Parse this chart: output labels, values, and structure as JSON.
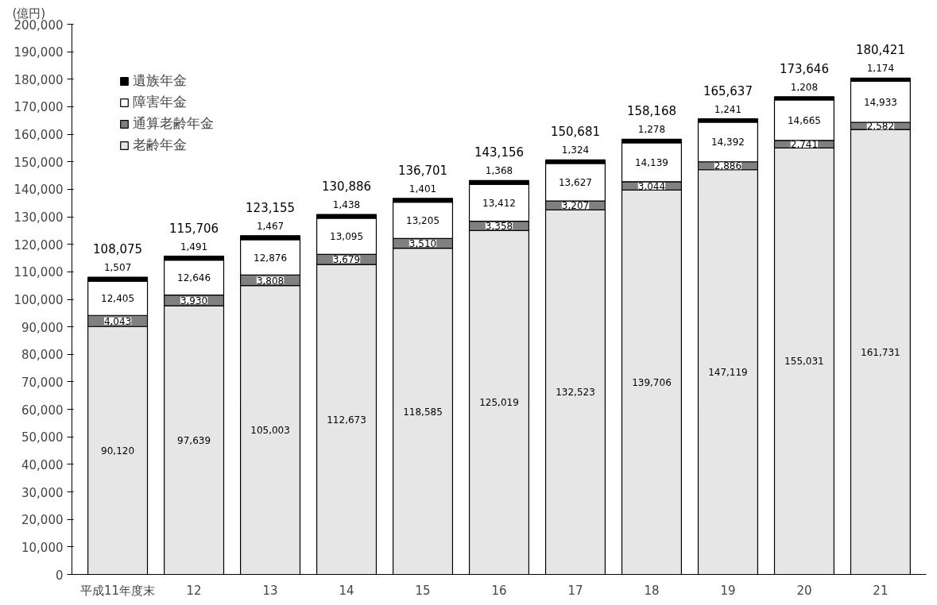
{
  "chart_data": {
    "type": "bar",
    "stacked": true,
    "ylabel": "(億円)",
    "legend": "top left",
    "grid": false,
    "categories": [
      "平成11年度末",
      "12",
      "13",
      "14",
      "15",
      "16",
      "17",
      "18",
      "19",
      "20",
      "21"
    ],
    "series": [
      {
        "name": "老齢年金",
        "color": "#e6e6e6",
        "values": [
          90120,
          97639,
          105003,
          112673,
          118585,
          125019,
          132523,
          139706,
          147119,
          155031,
          161731
        ],
        "value_labels": [
          "90,120",
          "97,639",
          "105,003",
          "112,673",
          "118,585",
          "125,019",
          "132,523",
          "139,706",
          "147,119",
          "155,031",
          "161,731"
        ]
      },
      {
        "name": "通算老齢年金",
        "color": "#808080",
        "values": [
          4043,
          3930,
          3808,
          3679,
          3510,
          3358,
          3207,
          3044,
          2886,
          2741,
          2582
        ],
        "value_labels": [
          "4,043",
          "3,930",
          "3,808",
          "3,679",
          "3,510",
          "3,358",
          "3,207",
          "3,044",
          "2,886",
          "2,741",
          "2,582"
        ]
      },
      {
        "name": "障害年金",
        "color": "#ffffff",
        "values": [
          12405,
          12646,
          12876,
          13095,
          13205,
          13412,
          13627,
          14139,
          14392,
          14665,
          14933
        ],
        "value_labels": [
          "12,405",
          "12,646",
          "12,876",
          "13,095",
          "13,205",
          "13,412",
          "13,627",
          "14,139",
          "14,392",
          "14,665",
          "14,933"
        ]
      },
      {
        "name": "遺族年金",
        "color": "#000000",
        "values": [
          1507,
          1491,
          1467,
          1438,
          1401,
          1368,
          1324,
          1278,
          1241,
          1208,
          1174
        ],
        "value_labels": [
          "1,507",
          "1,491",
          "1,467",
          "1,438",
          "1,401",
          "1,368",
          "1,324",
          "1,278",
          "1,241",
          "1,208",
          "1,174"
        ]
      }
    ],
    "totals": [
      "108,075",
      "115,706",
      "123,155",
      "130,886",
      "136,701",
      "143,156",
      "150,681",
      "158,168",
      "165,637",
      "173,646",
      "180,421"
    ],
    "ylim": [
      0,
      200000
    ],
    "yticks": [
      0,
      {
        "value": 10000,
        "label": "10,000"
      },
      {
        "value": 20000,
        "label": "20,000"
      },
      {
        "value": 30000,
        "label": "30,000"
      },
      {
        "value": 40000,
        "label": "40,000"
      },
      {
        "value": 50000,
        "label": "50,000"
      },
      {
        "value": 60000,
        "label": "60,000"
      },
      {
        "value": 70000,
        "label": "70,000"
      },
      {
        "value": 80000,
        "label": "80,000"
      },
      {
        "value": 90000,
        "label": "90,000"
      },
      {
        "value": 100000,
        "label": "100,000"
      },
      {
        "value": 110000,
        "label": "110,000"
      },
      {
        "value": 120000,
        "label": "120,000"
      },
      {
        "value": 130000,
        "label": "130,000"
      },
      {
        "value": 140000,
        "label": "140,000"
      },
      {
        "value": 150000,
        "label": "150,000"
      },
      {
        "value": 160000,
        "label": "160,000"
      },
      {
        "value": 170000,
        "label": "170,000"
      },
      {
        "value": 180000,
        "label": "180,000"
      },
      {
        "value": 190000,
        "label": "190,000"
      },
      {
        "value": 200000,
        "label": "200,000"
      }
    ]
  }
}
